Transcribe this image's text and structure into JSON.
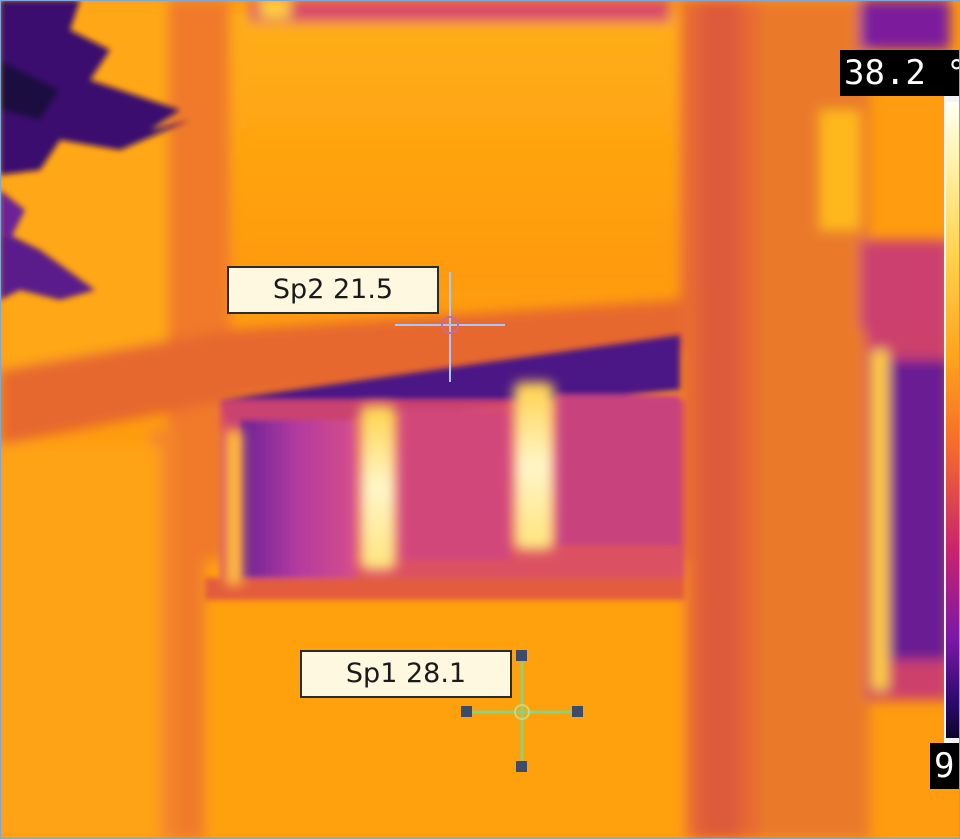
{
  "spots": [
    {
      "id": "Sp1",
      "label": "Sp1 28.1",
      "value": 28.1
    },
    {
      "id": "Sp2",
      "label": "Sp2 21.5",
      "value": 21.5
    }
  ],
  "scale": {
    "max_label": "38.2 °",
    "min_label": "9",
    "palette": "iron"
  },
  "colors": {
    "facade": "#ff9d0e",
    "cool": "#3a1a86",
    "hot": "#fff5b8",
    "spot1_marker": "#8fd07a",
    "spot2_marker": "#a6c8ff"
  }
}
